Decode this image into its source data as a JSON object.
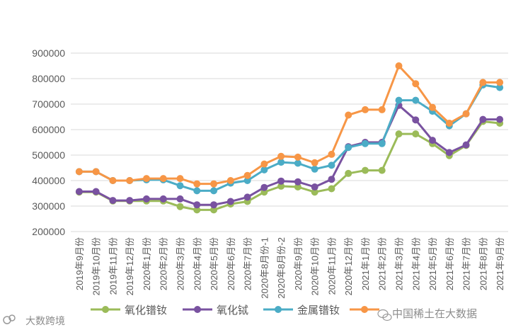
{
  "chart_data": {
    "type": "line",
    "title": "",
    "xlabel": "",
    "ylabel": "",
    "ylim": [
      200000,
      900000
    ],
    "yticks": [
      200000,
      300000,
      400000,
      500000,
      600000,
      700000,
      800000,
      900000
    ],
    "ytick_labels": [
      "200000",
      "300000",
      "400000",
      "500000",
      "600000",
      "700000",
      "800000",
      "900000"
    ],
    "grid": true,
    "legend_position": "bottom",
    "categories": [
      "2019年9月份",
      "2019年10月份",
      "2019年11月份",
      "2019年12月份",
      "2020年1月份",
      "2020年2月份",
      "2020年3月份",
      "2020年4月份",
      "2020年5月份",
      "2020年6月份",
      "2020年7月份",
      "2020年8月份-1",
      "2020年8月份-2",
      "2020年9月份",
      "2020年10月份",
      "2020年11月份",
      "2020年12月份",
      "2021年1月份",
      "2021年2月份",
      "2021年3月份",
      "2021年4月份",
      "2021年5月份",
      "2021年6月份",
      "2021年7月份",
      "2021年8月份",
      "2021年9月份"
    ],
    "series": [
      {
        "name": "氧化镨钕",
        "color": "#9bbb59",
        "values": [
          355000,
          355000,
          320000,
          320000,
          320000,
          320000,
          298000,
          285000,
          285000,
          308000,
          318000,
          355000,
          378000,
          375000,
          355000,
          368000,
          428000,
          440000,
          440000,
          583000,
          583000,
          545000,
          498000,
          538000,
          632000,
          625000
        ]
      },
      {
        "name": "氧化铽",
        "color": "#7952a0",
        "values": [
          357000,
          357000,
          322000,
          322000,
          328000,
          328000,
          328000,
          305000,
          305000,
          318000,
          335000,
          373000,
          398000,
          395000,
          375000,
          405000,
          533000,
          550000,
          550000,
          695000,
          638000,
          558000,
          510000,
          540000,
          640000,
          640000
        ]
      },
      {
        "name": "金属镨钕",
        "color": "#4bacc6",
        "values": [
          435000,
          435000,
          400000,
          400000,
          403000,
          403000,
          380000,
          360000,
          360000,
          390000,
          400000,
          442000,
          472000,
          468000,
          445000,
          460000,
          530000,
          545000,
          545000,
          715000,
          715000,
          672000,
          615000,
          662000,
          775000,
          765000
        ]
      },
      {
        "name": "",
        "color": "#f79646",
        "values": [
          435000,
          435000,
          400000,
          400000,
          408000,
          408000,
          408000,
          387000,
          387000,
          400000,
          420000,
          465000,
          495000,
          492000,
          470000,
          503000,
          657000,
          678000,
          678000,
          850000,
          780000,
          687000,
          625000,
          662000,
          785000,
          785000
        ]
      }
    ]
  },
  "watermarks": {
    "left": "大数跨境",
    "right": "中国稀土在大数据"
  },
  "icons": {
    "left_logo": "cloud-logo-icon",
    "right_logo": "wechat-icon"
  }
}
